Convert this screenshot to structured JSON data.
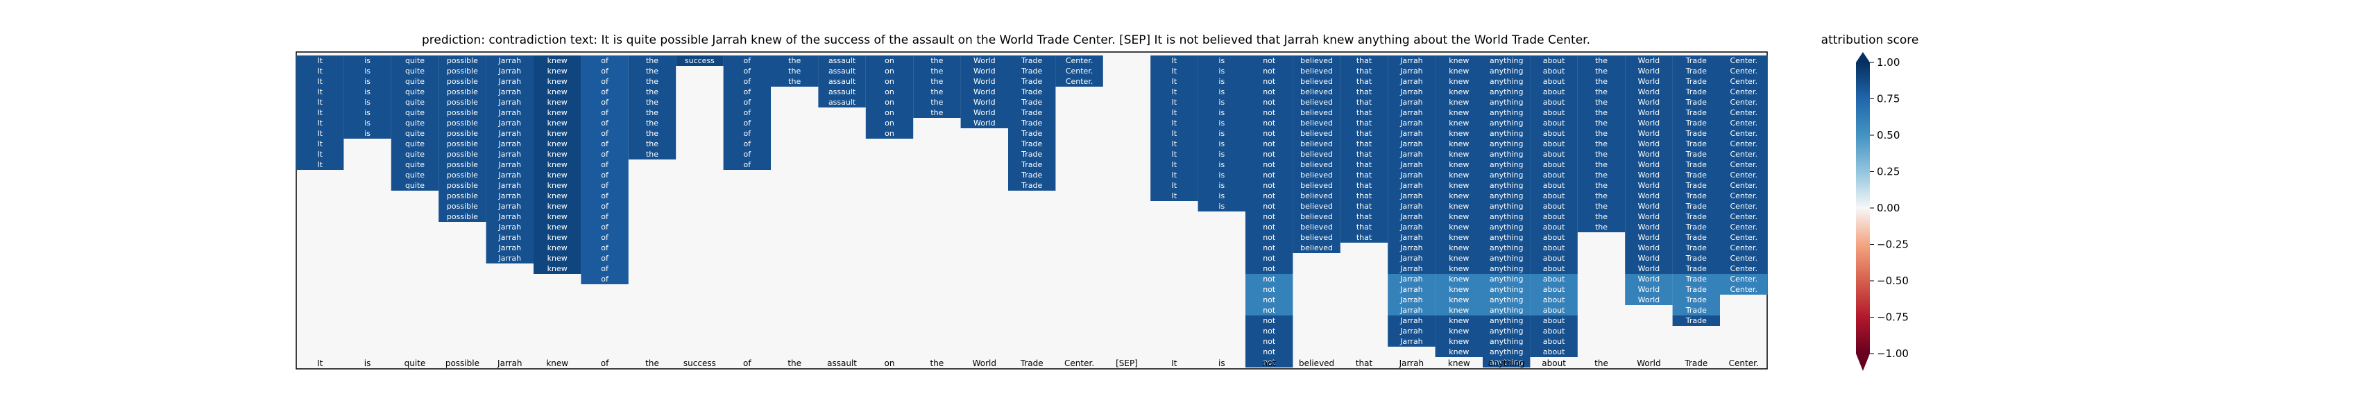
{
  "title": "prediction:  contradiction      text:  It is quite possible Jarrah knew of the success of the assault on the World Trade Center. [SEP] It is not believed that Jarrah knew anything about the World Trade Center.",
  "colorbar": {
    "title": "attribution score",
    "ticks": [
      "1.00",
      "0.75",
      "0.50",
      "0.25",
      "0.00",
      "−0.25",
      "−0.50",
      "−0.75",
      "−1.00"
    ],
    "tick_values": [
      1.0,
      0.75,
      0.5,
      0.25,
      0.0,
      -0.25,
      -0.5,
      -0.75,
      -1.0
    ],
    "colors": {
      "pos": "#053061",
      "mid": "#f7f7f7",
      "neg": "#67001f"
    }
  },
  "chart_data": {
    "type": "heatmap",
    "tokens": [
      "It",
      "is",
      "quite",
      "possible",
      "Jarrah",
      "knew",
      "of",
      "the",
      "success",
      "of",
      "the",
      "assault",
      "on",
      "the",
      "World",
      "Trade",
      "Center.",
      "[SEP]",
      "It",
      "is",
      "not",
      "believed",
      "that",
      "Jarrah",
      "knew",
      "anything",
      "about",
      "the",
      "World",
      "Trade",
      "Center."
    ],
    "column_heights": [
      11,
      8,
      13,
      16,
      20,
      21,
      22,
      10,
      1,
      11,
      3,
      5,
      8,
      6,
      7,
      13,
      3,
      0,
      14,
      15,
      30,
      19,
      18,
      28,
      29,
      30,
      29,
      17,
      24,
      26,
      23
    ],
    "column_values": [
      0.85,
      0.85,
      0.85,
      0.85,
      0.85,
      0.9,
      0.8,
      0.85,
      0.9,
      0.85,
      0.85,
      0.85,
      0.85,
      0.85,
      0.85,
      0.85,
      0.85,
      0.0,
      0.85,
      0.85,
      0.85,
      0.85,
      0.85,
      0.85,
      0.85,
      0.85,
      0.85,
      0.85,
      0.85,
      0.85,
      0.85
    ],
    "lighter_cells": [
      {
        "rows": [
          21,
          22,
          23,
          24
        ],
        "cols": [
          20,
          23,
          24,
          25,
          26,
          28,
          29,
          30
        ],
        "value": 0.6
      }
    ],
    "vlim": [
      -1,
      1
    ],
    "colormap": "RdBu"
  }
}
